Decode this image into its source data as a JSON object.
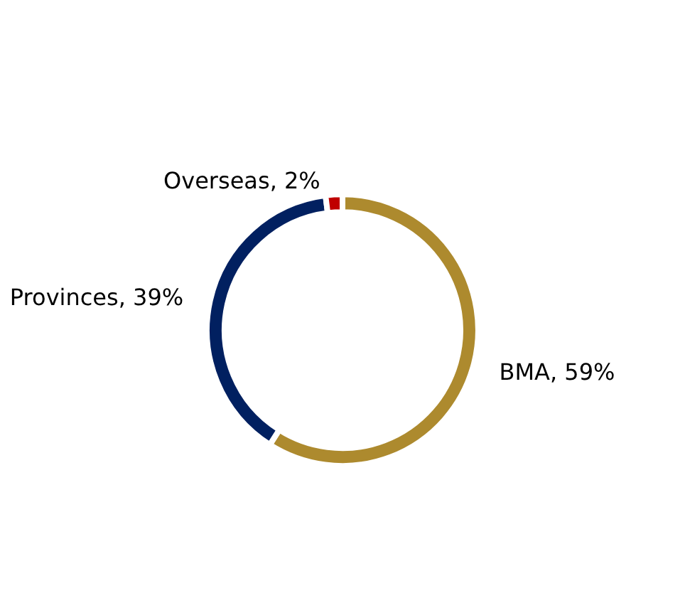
{
  "chart_data": {
    "type": "donut",
    "categories": [
      "BMA",
      "Provinces",
      "Overseas"
    ],
    "values": [
      59,
      39,
      2
    ],
    "colors": [
      "#ad8a2e",
      "#012060",
      "#c00000"
    ],
    "value_labels": [
      "59%",
      "39%",
      "2%"
    ],
    "legend": false
  }
}
